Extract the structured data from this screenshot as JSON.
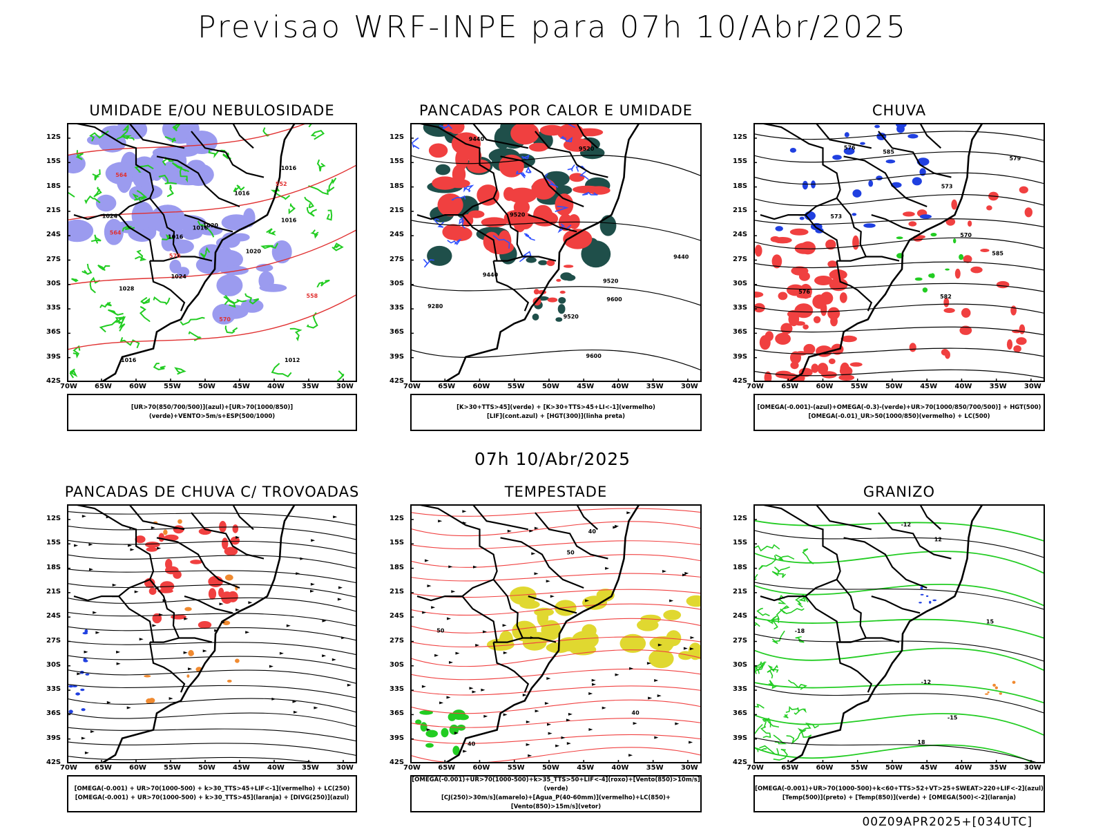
{
  "header": {
    "title": "Previsao WRF-INPE  para 07h 10/Abr/2025"
  },
  "middle_label": "07h 10/Abr/2025",
  "footer_stamp": "00Z09APR2025+[034UTC]",
  "axes": {
    "lat_ticks": [
      "12S",
      "15S",
      "18S",
      "21S",
      "24S",
      "27S",
      "30S",
      "33S",
      "36S",
      "39S",
      "42S"
    ],
    "lon_ticks": [
      "70W",
      "65W",
      "60W",
      "55W",
      "50W",
      "45W",
      "40W",
      "35W",
      "30W"
    ]
  },
  "panels": [
    {
      "title": "UMIDADE E/OU NEBULOSIDADE",
      "legend": [
        "[UR>70(850/700/500)](azul)+[UR>70(1000/850)](verde)+VENTO>5m/s+ESP(500/1000)"
      ],
      "contour_labels": [
        "1020",
        "1016",
        "1016",
        "1016",
        "1016",
        "1012",
        "1016",
        "1016",
        "1020",
        "1024",
        "1024",
        "1028",
        "570",
        "570",
        "564",
        "564",
        "558",
        "552"
      ]
    },
    {
      "title": "PANCADAS POR CALOR E UMIDADE",
      "legend": [
        "[K>30+TTS>45](verde) + [K>30+TTS>45+LI<-1](vermelho)",
        "[LIF](cont.azul) + [HGT(300)](linha preta)"
      ],
      "contour_labels": [
        "9600",
        "9520",
        "9520",
        "9520",
        "9600",
        "9520",
        "9440",
        "9440",
        "9440",
        "9280"
      ]
    },
    {
      "title": "CHUVA",
      "legend": [
        "[OMEGA(-0.001)-(azul)+OMEGA(-0.3)-(verde)+UR>70(1000/850/700/500)] + HGT(500)",
        "[OMEGA(-0.01)_UR>50(1000/850)(vermelho) + LC(500)"
      ],
      "contour_labels": [
        "585",
        "585",
        "582",
        "579",
        "576",
        "576",
        "573",
        "573",
        "570"
      ]
    },
    {
      "title": "PANCADAS DE CHUVA C/ TROVOADAS",
      "legend": [
        "[OMEGA(-0.001) + UR>70(1000-500) + k>30_TTS>45+LIF<-1](vermelho) + LC(250)",
        "[OMEGA(-0.001) + UR>70(1000-500) + k>30_TTS>45](laranja) + [DIVG(250)](azul)"
      ],
      "contour_labels": []
    },
    {
      "title": "TEMPESTADE",
      "legend": [
        "[OMEGA(-0.001)+UR>70(1000-500)+k>35_TTS>50+LIF<-4](roxo)+[Vento(850)>10m/s](verde)",
        "[CJ(250)>30m/s](amarelo)+[Agua_P(40-60mm)](vermelho)+LC(850)+[Vento(850)>15m/s](vetor)"
      ],
      "contour_labels": [
        "50",
        "50",
        "40",
        "40",
        "40"
      ]
    },
    {
      "title": "GRANIZO",
      "legend": [
        "[OMEGA(-0.001)+UR>70(1000-500)+k<60+TTS>52+VT>25+SWEAT>220+LIF<-2](azul)",
        "[Temp(500)](preto) + [Temp(850)](verde) + [OMEGA(500)<-2](laranja)"
      ],
      "contour_labels": [
        "-12",
        "-15",
        "-18",
        "-12",
        "18",
        "15",
        "12"
      ]
    }
  ],
  "colors": {
    "blue": "#9b9bef",
    "green": "#22cc22",
    "red": "#f04040",
    "darkgreen": "#1f4f4a",
    "yellow": "#e0d830",
    "orange": "#f08a30",
    "navy": "#2040e0"
  }
}
